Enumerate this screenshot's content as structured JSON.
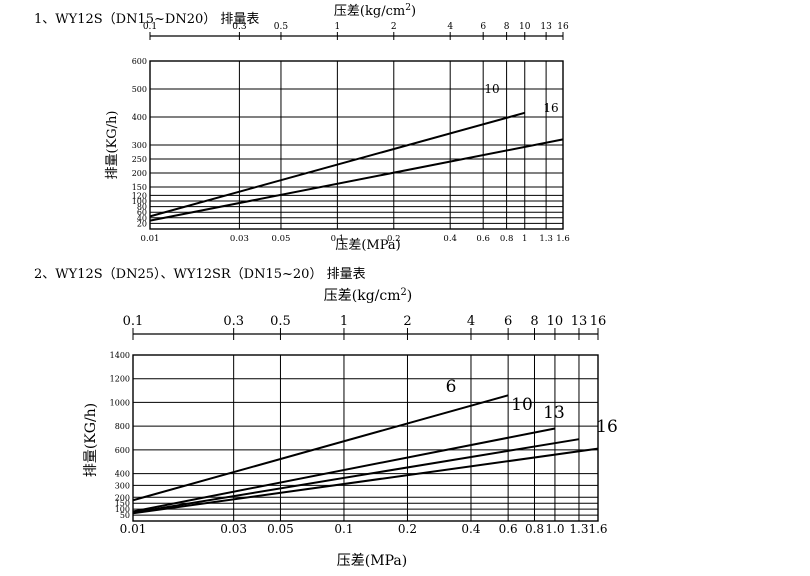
{
  "page": {
    "title1": "1、WY12S（DN15~DN20） 排量表",
    "title2": "2、WY12S（DN25）、WY12SR（DN15~20） 排量表"
  },
  "chart_data": [
    {
      "type": "line",
      "top_axis_label": "压差(kg/cm²)",
      "top_ticks": [
        "0.1",
        "0.3",
        "0.5",
        "1",
        "2",
        "4",
        "6",
        "8",
        "10",
        "13",
        "16"
      ],
      "xlabel": "压差(MPa)",
      "x_ticks": [
        "0.01",
        "0.03",
        "0.05",
        "0.1",
        "0.2",
        "0.4",
        "0.6",
        "0.8",
        "1",
        "1.3",
        "1.6"
      ],
      "ylabel": "排量(KG/h)",
      "y_ticks": [
        "20",
        "40",
        "60",
        "80",
        "100",
        "120",
        "150",
        "200",
        "250",
        "300",
        "400",
        "500",
        "600"
      ],
      "ylim": [
        0,
        600
      ],
      "x_scale": "log",
      "series": [
        {
          "name": "10",
          "x": [
            0.01,
            1.0
          ],
          "y": [
            45,
            415
          ]
        },
        {
          "name": "16",
          "x": [
            0.01,
            1.6
          ],
          "y": [
            30,
            320
          ]
        }
      ]
    },
    {
      "type": "line",
      "top_axis_label": "压差(kg/cm²)",
      "top_ticks": [
        "0.1",
        "0.3",
        "0.5",
        "1",
        "2",
        "4",
        "6",
        "8",
        "10",
        "13",
        "16"
      ],
      "xlabel": "压差(MPa)",
      "x_ticks": [
        "0.01",
        "0.03",
        "0.05",
        "0.1",
        "0.2",
        "0.4",
        "0.6",
        "0.8",
        "1.0",
        "1.3",
        "1.6"
      ],
      "ylabel": "排量(KG/h)",
      "y_ticks": [
        "50",
        "100",
        "150",
        "200",
        "300",
        "400",
        "600",
        "800",
        "1000",
        "1200",
        "1400"
      ],
      "ylim": [
        0,
        1400
      ],
      "x_scale": "log",
      "series": [
        {
          "name": "6",
          "x": [
            0.01,
            0.6
          ],
          "y": [
            175,
            1060
          ]
        },
        {
          "name": "10",
          "x": [
            0.01,
            1.0
          ],
          "y": [
            80,
            780
          ]
        },
        {
          "name": "13",
          "x": [
            0.01,
            1.3
          ],
          "y": [
            70,
            690
          ]
        },
        {
          "name": "16",
          "x": [
            0.01,
            1.6
          ],
          "y": [
            65,
            610
          ]
        }
      ]
    }
  ]
}
